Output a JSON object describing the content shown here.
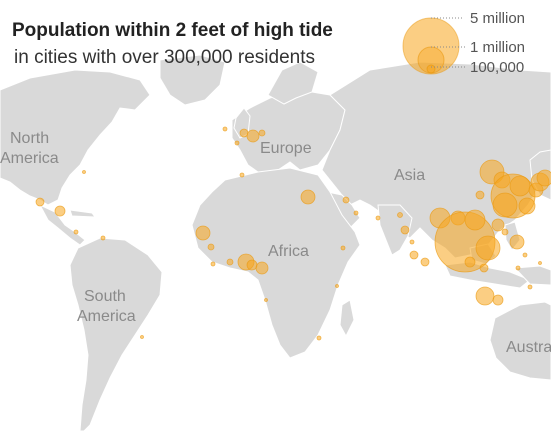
{
  "title": "Population within 2 feet of high tide",
  "subtitle": "in cities with over 300,000 residents",
  "legend": {
    "items": [
      {
        "label": "5 million",
        "value": 5000000
      },
      {
        "label": "1 million",
        "value": 1000000
      },
      {
        "label": "100,000",
        "value": 100000
      }
    ]
  },
  "regions": {
    "north_america": [
      "North",
      "America"
    ],
    "europe": "Europe",
    "asia": "Asia",
    "africa": "Africa",
    "south_america": [
      "South",
      "America"
    ],
    "australia": "Austra"
  },
  "colors": {
    "land": "#d9d9d9",
    "bubble": "#f7a51e",
    "bubble_stroke": "#ea9a12",
    "label": "#8a8a8a"
  }
}
